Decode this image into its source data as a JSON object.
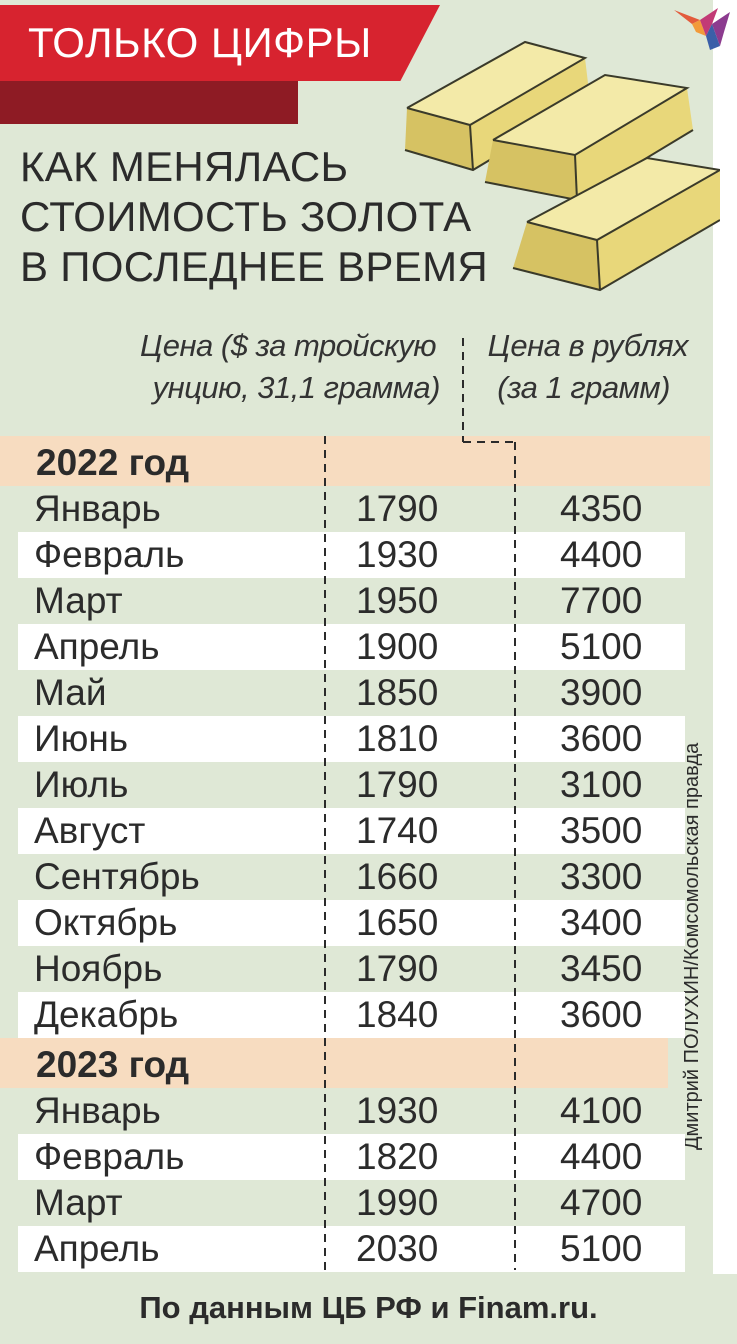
{
  "banner": "ТОЛЬКО ЦИФРЫ",
  "headline": [
    "КАК МЕНЯЛАСЬ",
    "СТОИМОСТЬ ЗОЛОТА",
    "В ПОСЛЕДНЕЕ ВРЕМЯ"
  ],
  "columns": {
    "usd": [
      "Цена ($ за тройскую",
      "унцию, 31,1 грамма)"
    ],
    "rub": [
      "Цена в рублях",
      "(за 1 грамм)"
    ]
  },
  "years": [
    {
      "year": "2022 год",
      "rows": [
        {
          "month": "Январь",
          "usd": "1790",
          "rub": "4350"
        },
        {
          "month": "Февраль",
          "usd": "1930",
          "rub": "4400"
        },
        {
          "month": "Март",
          "usd": "1950",
          "rub": "7700"
        },
        {
          "month": "Апрель",
          "usd": "1900",
          "rub": "5100"
        },
        {
          "month": "Май",
          "usd": "1850",
          "rub": "3900"
        },
        {
          "month": "Июнь",
          "usd": "1810",
          "rub": "3600"
        },
        {
          "month": "Июль",
          "usd": "1790",
          "rub": "3100"
        },
        {
          "month": "Август",
          "usd": "1740",
          "rub": "3500"
        },
        {
          "month": "Сентябрь",
          "usd": "1660",
          "rub": "3300"
        },
        {
          "month": "Октябрь",
          "usd": "1650",
          "rub": "3400"
        },
        {
          "month": "Ноябрь",
          "usd": "1790",
          "rub": "3450"
        },
        {
          "month": "Декабрь",
          "usd": "1840",
          "rub": "3600"
        }
      ]
    },
    {
      "year": "2023 год",
      "rows": [
        {
          "month": "Январь",
          "usd": "1930",
          "rub": "4100"
        },
        {
          "month": "Февраль",
          "usd": "1820",
          "rub": "4400"
        },
        {
          "month": "Март",
          "usd": "1990",
          "rub": "4700"
        },
        {
          "month": "Апрель",
          "usd": "2030",
          "rub": "5100"
        }
      ]
    }
  ],
  "credit": "Дмитрий ПОЛУХИН/Комсомольская правда",
  "source": "По данным ЦБ РФ и Finam.ru.",
  "colors": {
    "banner_red": "#d7232f",
    "banner_dark": "#8e1b24",
    "background": "#dfe8d6",
    "year_band": "#f7dcc0",
    "gold": "#efe39a"
  }
}
